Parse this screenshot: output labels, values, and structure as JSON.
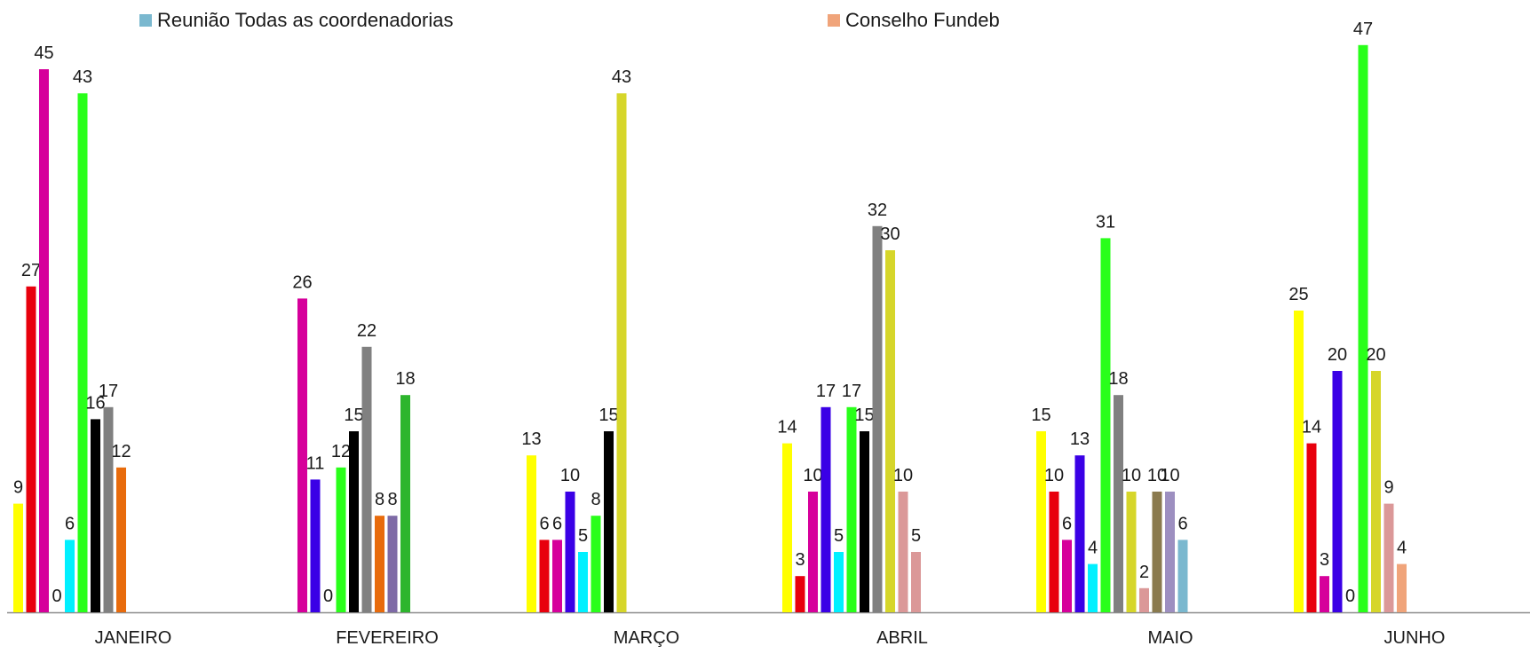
{
  "legend": [
    {
      "name": "Reunião Todas as coordenadorias",
      "color": "#7ab8cf"
    },
    {
      "name": "Conselho Fundeb",
      "color": "#f0a47a"
    }
  ],
  "chart_data": {
    "type": "bar",
    "categories": [
      "JANEIRO",
      "FEVEREIRO",
      "MARÇO",
      "ABRIL",
      "MAIO",
      "JUNHO"
    ],
    "ylim": [
      0,
      50
    ],
    "grid": false,
    "legend_position": "top",
    "groups": [
      {
        "category": "JANEIRO",
        "bars": [
          {
            "value": 9,
            "color": "#ffff00"
          },
          {
            "value": 27,
            "color": "#e8000d"
          },
          {
            "value": 45,
            "color": "#d6009b"
          },
          {
            "value": 0,
            "color": "#3a00e6"
          },
          {
            "value": 6,
            "color": "#00f0ff"
          },
          {
            "value": 43,
            "color": "#29ff1a"
          },
          {
            "value": 16,
            "color": "#000000"
          },
          {
            "value": 17,
            "color": "#808080"
          },
          {
            "value": 12,
            "color": "#e86b0c"
          }
        ]
      },
      {
        "category": "FEVEREIRO",
        "bars": [
          {
            "value": 26,
            "color": "#d6009b"
          },
          {
            "value": 11,
            "color": "#3a00e6"
          },
          {
            "value": 0,
            "color": "#00f0ff"
          },
          {
            "value": 12,
            "color": "#29ff1a"
          },
          {
            "value": 15,
            "color": "#000000"
          },
          {
            "value": 22,
            "color": "#808080"
          },
          {
            "value": 8,
            "color": "#e86b0c"
          },
          {
            "value": 8,
            "color": "#7e6aa6"
          },
          {
            "value": 18,
            "color": "#2db52d"
          }
        ]
      },
      {
        "category": "MARÇO",
        "bars": [
          {
            "value": 13,
            "color": "#ffff00"
          },
          {
            "value": 6,
            "color": "#e8000d"
          },
          {
            "value": 6,
            "color": "#d6009b"
          },
          {
            "value": 10,
            "color": "#3a00e6"
          },
          {
            "value": 5,
            "color": "#00f0ff"
          },
          {
            "value": 8,
            "color": "#29ff1a"
          },
          {
            "value": 15,
            "color": "#000000"
          },
          {
            "value": 43,
            "color": "#d6d62a"
          }
        ]
      },
      {
        "category": "ABRIL",
        "bars": [
          {
            "value": 14,
            "color": "#ffff00"
          },
          {
            "value": 3,
            "color": "#e8000d"
          },
          {
            "value": 10,
            "color": "#d6009b"
          },
          {
            "value": 17,
            "color": "#3a00e6"
          },
          {
            "value": 5,
            "color": "#00f0ff"
          },
          {
            "value": 17,
            "color": "#29ff1a"
          },
          {
            "value": 15,
            "color": "#000000"
          },
          {
            "value": 32,
            "color": "#808080"
          },
          {
            "value": 30,
            "color": "#d6d62a"
          },
          {
            "value": 10,
            "color": "#db9898"
          },
          {
            "value": 5,
            "color": "#db9898"
          }
        ]
      },
      {
        "category": "MAIO",
        "bars": [
          {
            "value": 15,
            "color": "#ffff00"
          },
          {
            "value": 10,
            "color": "#e8000d"
          },
          {
            "value": 6,
            "color": "#d6009b"
          },
          {
            "value": 13,
            "color": "#3a00e6"
          },
          {
            "value": 4,
            "color": "#00f0ff"
          },
          {
            "value": 31,
            "color": "#29ff1a"
          },
          {
            "value": 18,
            "color": "#808080"
          },
          {
            "value": 10,
            "color": "#d6d62a"
          },
          {
            "value": 2,
            "color": "#db9898"
          },
          {
            "value": 10,
            "color": "#8a7a4e"
          },
          {
            "value": 10,
            "color": "#9d8fc0"
          },
          {
            "value": 6,
            "color": "#7ab8cf"
          }
        ]
      },
      {
        "category": "JUNHO",
        "bars": [
          {
            "value": 25,
            "color": "#ffff00"
          },
          {
            "value": 14,
            "color": "#e8000d"
          },
          {
            "value": 3,
            "color": "#d6009b"
          },
          {
            "value": 20,
            "color": "#3a00e6"
          },
          {
            "value": 0,
            "color": "#00f0ff"
          },
          {
            "value": 47,
            "color": "#29ff1a"
          },
          {
            "value": 20,
            "color": "#d6d62a"
          },
          {
            "value": 9,
            "color": "#db9898"
          },
          {
            "value": 4,
            "color": "#f0a47a"
          }
        ]
      }
    ]
  }
}
